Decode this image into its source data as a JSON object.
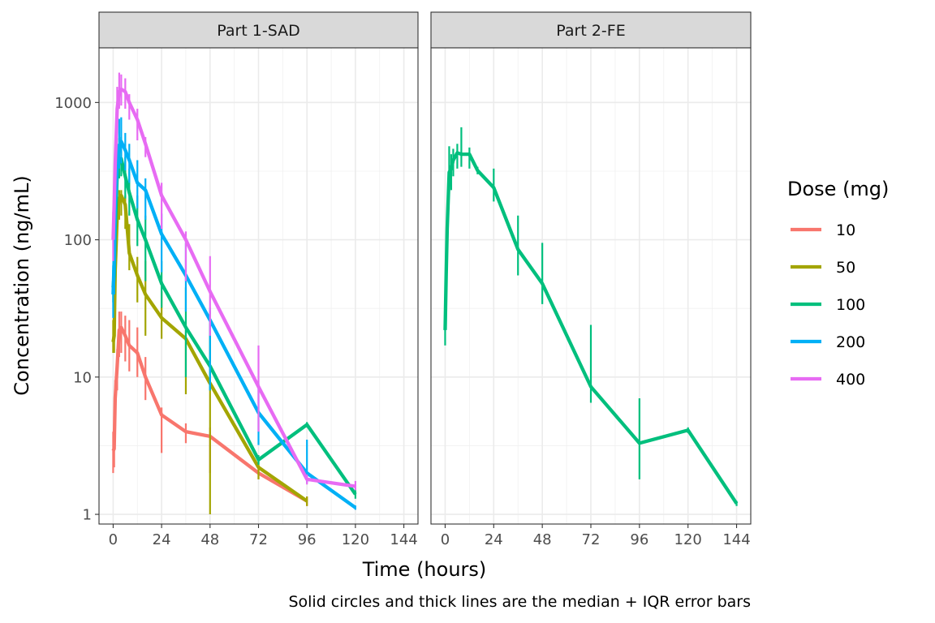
{
  "chart_data": {
    "type": "line",
    "xlabel": "Time (hours)",
    "ylabel": "Concentration (ng/mL)",
    "caption": "Solid circles and thick lines are the median + IQR error bars",
    "y_scale": "log10",
    "ylim": [
      0.85,
      2500
    ],
    "xlim": [
      -7,
      151
    ],
    "x_ticks": [
      0,
      24,
      48,
      72,
      96,
      120,
      144
    ],
    "y_ticks": [
      1,
      10,
      100,
      1000
    ],
    "y_tick_labels": [
      "1",
      "10",
      "100",
      "1000"
    ],
    "grid": true,
    "legend": {
      "title": "Dose (mg)",
      "position": "right",
      "items": [
        {
          "label": "10",
          "color": "#F8766D"
        },
        {
          "label": "50",
          "color": "#A3A500"
        },
        {
          "label": "100",
          "color": "#00BF7D"
        },
        {
          "label": "200",
          "color": "#00B0F6"
        },
        {
          "label": "400",
          "color": "#E76BF3"
        }
      ]
    },
    "panels": [
      {
        "label": "Part 1-SAD",
        "series": [
          {
            "name": "10",
            "color": "#F8766D",
            "x": [
              0,
              0.5,
              1,
              2,
              3,
              4,
              6,
              8,
              12,
              16,
              24,
              36,
              48,
              72,
              96
            ],
            "y": [
              2.9,
              3.0,
              7.0,
              12,
              22,
              23,
              20,
              17,
              15,
              10,
              5.3,
              4.0,
              3.7,
              2.0,
              1.25
            ],
            "lower": [
              2.0,
              2.2,
              4.5,
              8,
              14,
              15,
              13,
              11,
              10,
              6.8,
              2.8,
              3.3,
              2.0,
              1.8,
              1.15
            ],
            "upper": [
              4.0,
              4.2,
              9.5,
              16,
              30,
              30,
              28,
              26,
              23,
              14,
              6.0,
              4.6,
              4.3,
              2.3,
              1.35
            ]
          },
          {
            "name": "50",
            "color": "#A3A500",
            "x": [
              0,
              0.5,
              1,
              2,
              3,
              4,
              6,
              8,
              12,
              16,
              24,
              36,
              48,
              72,
              96
            ],
            "y": [
              18,
              20,
              60,
              150,
              200,
              210,
              180,
              80,
              55,
              40,
              27,
              19,
              9,
              2.2,
              1.25
            ],
            "lower": [
              15,
              15,
              40,
              100,
              140,
              150,
              120,
              60,
              35,
              20,
              19,
              7.5,
              1.0,
              1.8,
              1.15
            ],
            "upper": [
              26,
              28,
              80,
              230,
              230,
              230,
              210,
              130,
              75,
              70,
              42,
              25,
              30,
              2.5,
              1.35
            ]
          },
          {
            "name": "100",
            "color": "#00BF7D",
            "x": [
              0,
              0.5,
              1,
              2,
              3,
              4,
              6,
              8,
              12,
              16,
              24,
              36,
              48,
              72,
              96,
              120
            ],
            "y": [
              45,
              55,
              120,
              300,
              380,
              390,
              290,
              220,
              140,
              100,
              48,
              23,
              12,
              2.5,
              4.5,
              1.4
            ],
            "lower": [
              35,
              40,
              80,
              230,
              280,
              290,
              200,
              150,
              90,
              50,
              32,
              10,
              8,
              2.3,
              4.3,
              1.3
            ],
            "upper": [
              60,
              75,
              160,
              380,
              550,
              560,
              400,
              330,
              210,
              150,
              70,
              45,
              25,
              2.7,
              4.7,
              1.5
            ]
          },
          {
            "name": "200",
            "color": "#00B0F6",
            "x": [
              0,
              0.5,
              1,
              2,
              3,
              4,
              6,
              8,
              12,
              16,
              24,
              36,
              48,
              72,
              96,
              120
            ],
            "y": [
              40,
              70,
              180,
              350,
              480,
              520,
              450,
              380,
              260,
              230,
              110,
              55,
              26,
              5.5,
              2.0,
              1.12
            ],
            "lower": [
              27,
              40,
              110,
              260,
              330,
              360,
              320,
              260,
              170,
              140,
              58,
              30,
              8,
              3.2,
              1.7,
              1.08
            ],
            "upper": [
              65,
              100,
              260,
              500,
              760,
              780,
              600,
              500,
              380,
              280,
              155,
              95,
              32,
              9,
              3.5,
              1.16
            ]
          },
          {
            "name": "400",
            "color": "#E76BF3",
            "x": [
              0,
              0.5,
              1,
              2,
              3,
              4,
              6,
              8,
              12,
              16,
              24,
              36,
              48,
              72,
              96,
              120
            ],
            "y": [
              100,
              180,
              350,
              900,
              1200,
              1250,
              1200,
              1000,
              750,
              500,
              210,
              100,
              42,
              8.5,
              1.8,
              1.6
            ],
            "lower": [
              70,
              120,
              250,
              600,
              900,
              950,
              900,
              750,
              530,
              400,
              120,
              50,
              20,
              4.0,
              1.65,
              1.5
            ],
            "upper": [
              160,
              250,
              450,
              1300,
              1650,
              1600,
              1500,
              1150,
              900,
              560,
              260,
              115,
              76,
              17,
              1.95,
              1.75
            ]
          }
        ]
      },
      {
        "label": "Part 2-FE",
        "series": [
          {
            "name": "100",
            "color": "#00BF7D",
            "x": [
              0,
              0.5,
              1,
              2,
              3,
              4,
              6,
              8,
              12,
              16,
              24,
              36,
              48,
              72,
              96,
              120,
              144
            ],
            "y": [
              22,
              55,
              120,
              310,
              330,
              380,
              430,
              420,
              420,
              320,
              240,
              85,
              48,
              8.5,
              3.3,
              4.1,
              1.2
            ],
            "lower": [
              17,
              40,
              100,
              250,
              230,
              290,
              330,
              340,
              330,
              300,
              190,
              55,
              34,
              6.5,
              1.8,
              3.9,
              1.15
            ],
            "upper": [
              28,
              70,
              150,
              480,
              420,
              460,
              500,
              660,
              470,
              340,
              330,
              150,
              95,
              24,
              7.0,
              4.3,
              1.25
            ]
          }
        ]
      }
    ]
  }
}
